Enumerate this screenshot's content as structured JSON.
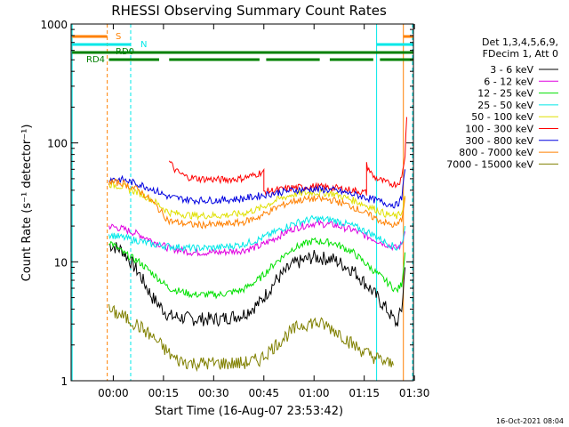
{
  "chart_data": {
    "type": "line",
    "title": "RHESSI Observing Summary Count Rates",
    "xlabel": "Start Time (16-Aug-07 23:53:42)",
    "ylabel": "Count Rate (s⁻¹ detector⁻¹)",
    "yscale": "log",
    "ylim": [
      1,
      1000
    ],
    "xlim_minutes": [
      -6.3,
      96
    ],
    "x_tick_labels": [
      "00:00",
      "00:15",
      "00:30",
      "00:45",
      "01:00",
      "01:15",
      "01:30"
    ],
    "x_tick_minutes": [
      6.3,
      21.3,
      36.3,
      51.3,
      66.3,
      81.3,
      96.3
    ],
    "y_tick_labels": [
      "1",
      "10",
      "100",
      "1000"
    ],
    "y_tick_values": [
      1,
      10,
      100,
      1000
    ],
    "legend_header": [
      "Det 1,3,4,5,6,9,",
      "FDecim 1, Att 0"
    ],
    "series": [
      {
        "name": "3 - 6 keV",
        "color": "#000000",
        "points": [
          [
            5,
            14
          ],
          [
            9,
            12.5
          ],
          [
            14,
            8
          ],
          [
            18,
            5
          ],
          [
            23,
            3.5
          ],
          [
            30,
            3.3
          ],
          [
            38,
            3.3
          ],
          [
            45,
            3.6
          ],
          [
            50,
            4.5
          ],
          [
            55,
            7
          ],
          [
            60,
            9.5
          ],
          [
            66,
            11
          ],
          [
            72,
            10.5
          ],
          [
            78,
            8.5
          ],
          [
            83,
            6
          ],
          [
            88,
            4
          ],
          [
            91,
            3
          ],
          [
            92.5,
            4
          ],
          [
            93.5,
            9
          ]
        ]
      },
      {
        "name": "6 - 12 keV",
        "color": "#e000e0",
        "points": [
          [
            5,
            20
          ],
          [
            9,
            19
          ],
          [
            14,
            17
          ],
          [
            18,
            15
          ],
          [
            23,
            13
          ],
          [
            30,
            12
          ],
          [
            38,
            12
          ],
          [
            45,
            12.5
          ],
          [
            50,
            13.5
          ],
          [
            55,
            16
          ],
          [
            60,
            19
          ],
          [
            66,
            21
          ],
          [
            72,
            20.5
          ],
          [
            78,
            18.5
          ],
          [
            83,
            16
          ],
          [
            88,
            14
          ],
          [
            91,
            13
          ],
          [
            92.5,
            14
          ],
          [
            93.5,
            18
          ]
        ]
      },
      {
        "name": "12 - 25 keV",
        "color": "#00e000",
        "points": [
          [
            5,
            15
          ],
          [
            9,
            12
          ],
          [
            14,
            10
          ],
          [
            18,
            8
          ],
          [
            23,
            6
          ],
          [
            30,
            5.3
          ],
          [
            38,
            5.3
          ],
          [
            45,
            5.8
          ],
          [
            50,
            7.2
          ],
          [
            55,
            10
          ],
          [
            60,
            13
          ],
          [
            66,
            15
          ],
          [
            72,
            14.5
          ],
          [
            78,
            12
          ],
          [
            83,
            9
          ],
          [
            88,
            6.8
          ],
          [
            91,
            5.7
          ],
          [
            92.5,
            6.5
          ],
          [
            93.5,
            12
          ]
        ]
      },
      {
        "name": "25 - 50 keV",
        "color": "#00e8e8",
        "points": [
          [
            5,
            17
          ],
          [
            9,
            16
          ],
          [
            14,
            15
          ],
          [
            18,
            14
          ],
          [
            23,
            13.5
          ],
          [
            30,
            13
          ],
          [
            38,
            13.2
          ],
          [
            45,
            14
          ],
          [
            50,
            15.5
          ],
          [
            55,
            18
          ],
          [
            60,
            21
          ],
          [
            66,
            23
          ],
          [
            72,
            22.5
          ],
          [
            78,
            20
          ],
          [
            83,
            17.5
          ],
          [
            88,
            14.5
          ],
          [
            91,
            13
          ],
          [
            92.5,
            14
          ],
          [
            93.5,
            20
          ]
        ]
      },
      {
        "name": "50 - 100 keV",
        "color": "#e0e000",
        "points": [
          [
            5,
            45
          ],
          [
            9,
            43
          ],
          [
            14,
            38
          ],
          [
            18,
            33
          ],
          [
            23,
            26
          ],
          [
            30,
            24.5
          ],
          [
            38,
            24.5
          ],
          [
            45,
            25.5
          ],
          [
            50,
            28
          ],
          [
            55,
            33
          ],
          [
            60,
            37
          ],
          [
            66,
            38.5
          ],
          [
            72,
            37.5
          ],
          [
            78,
            33
          ],
          [
            83,
            29
          ],
          [
            88,
            25
          ],
          [
            91,
            24
          ],
          [
            92.5,
            26
          ],
          [
            93.5,
            36
          ]
        ]
      },
      {
        "name": "100 - 300 keV",
        "color": "#ff0000",
        "points": [
          [
            23,
            70
          ],
          [
            25,
            58
          ],
          [
            28,
            52
          ],
          [
            32,
            50
          ],
          [
            38,
            49
          ],
          [
            44,
            50
          ],
          [
            48,
            53
          ],
          [
            51.3,
            58
          ],
          [
            51.3,
            39
          ],
          [
            55,
            40
          ],
          [
            60,
            42
          ],
          [
            66,
            43
          ],
          [
            72,
            42
          ],
          [
            78,
            40
          ],
          [
            82,
            38
          ],
          [
            82,
            65
          ],
          [
            84,
            52
          ],
          [
            88,
            46
          ],
          [
            91,
            45
          ],
          [
            92.5,
            50
          ],
          [
            93.5,
            80
          ],
          [
            94,
            165
          ]
        ]
      },
      {
        "name": "300 - 800 keV",
        "color": "#0000e0",
        "points": [
          [
            5,
            50
          ],
          [
            9,
            49
          ],
          [
            14,
            45
          ],
          [
            18,
            41
          ],
          [
            23,
            35
          ],
          [
            30,
            33
          ],
          [
            38,
            33
          ],
          [
            45,
            34
          ],
          [
            50,
            36
          ],
          [
            55,
            38
          ],
          [
            60,
            40
          ],
          [
            66,
            41
          ],
          [
            72,
            40
          ],
          [
            78,
            37
          ],
          [
            83,
            34
          ],
          [
            88,
            31
          ],
          [
            91,
            30
          ],
          [
            92.5,
            34
          ],
          [
            93.5,
            60
          ]
        ]
      },
      {
        "name": "800 - 7000 keV",
        "color": "#ff8000",
        "points": [
          [
            5,
            47
          ],
          [
            9,
            46
          ],
          [
            14,
            40
          ],
          [
            18,
            32
          ],
          [
            23,
            22
          ],
          [
            30,
            20.5
          ],
          [
            38,
            20.5
          ],
          [
            45,
            21.5
          ],
          [
            50,
            24
          ],
          [
            55,
            28.5
          ],
          [
            60,
            32.5
          ],
          [
            66,
            34
          ],
          [
            72,
            33
          ],
          [
            78,
            29
          ],
          [
            83,
            24.5
          ],
          [
            88,
            21
          ],
          [
            91,
            20
          ],
          [
            92.5,
            23
          ],
          [
            93.5,
            35
          ]
        ]
      },
      {
        "name": "7000 - 15000 keV",
        "color": "#808000",
        "points": [
          [
            5,
            3.9
          ],
          [
            9,
            3.5
          ],
          [
            13,
            3.0
          ],
          [
            16,
            2.6
          ],
          [
            19,
            2.2
          ],
          [
            22,
            1.8
          ],
          [
            25,
            1.5
          ],
          [
            30,
            1.4
          ],
          [
            38,
            1.4
          ],
          [
            45,
            1.4
          ],
          [
            50,
            1.5
          ],
          [
            54,
            1.9
          ],
          [
            58,
            2.4
          ],
          [
            62,
            2.9
          ],
          [
            66,
            3.1
          ],
          [
            70,
            2.9
          ],
          [
            74,
            2.5
          ],
          [
            78,
            2.0
          ],
          [
            82,
            1.7
          ],
          [
            86,
            1.5
          ],
          [
            90,
            1.35
          ]
        ]
      }
    ],
    "flag_bars": [
      {
        "label": "S",
        "color": "#ff8000",
        "segments": [
          [
            -6,
            4.5
          ],
          [
            93,
            101
          ]
        ]
      },
      {
        "label": "N",
        "color": "#00e8e8",
        "segments": [
          [
            -6,
            11.5
          ],
          [
            85,
            101
          ]
        ]
      },
      {
        "label": "RD0",
        "color": "#008000",
        "segments": [
          [
            -6,
            101
          ]
        ]
      },
      {
        "label": "RD4",
        "color": "#008000",
        "segments": [
          [
            5,
            20
          ],
          [
            23,
            50
          ],
          [
            52,
            68
          ],
          [
            71,
            84
          ],
          [
            86,
            101
          ]
        ]
      }
    ],
    "vertical_markers": [
      {
        "minute": -6,
        "color": "#00e8e8",
        "style": "solid"
      },
      {
        "minute": 4.5,
        "color": "#ff8000",
        "style": "dashed"
      },
      {
        "minute": 11.5,
        "color": "#00e8e8",
        "style": "dashed"
      },
      {
        "minute": 85,
        "color": "#00e8e8",
        "style": "solid"
      },
      {
        "minute": 93,
        "color": "#ff8000",
        "style": "solid"
      },
      {
        "minute": 101,
        "color": "#ff8000",
        "style": "dashed"
      },
      {
        "minute": 101.5,
        "color": "#00e8e8",
        "style": "dashed"
      }
    ]
  },
  "footer": {
    "stamp": "16-Oct-2021 08:04"
  }
}
